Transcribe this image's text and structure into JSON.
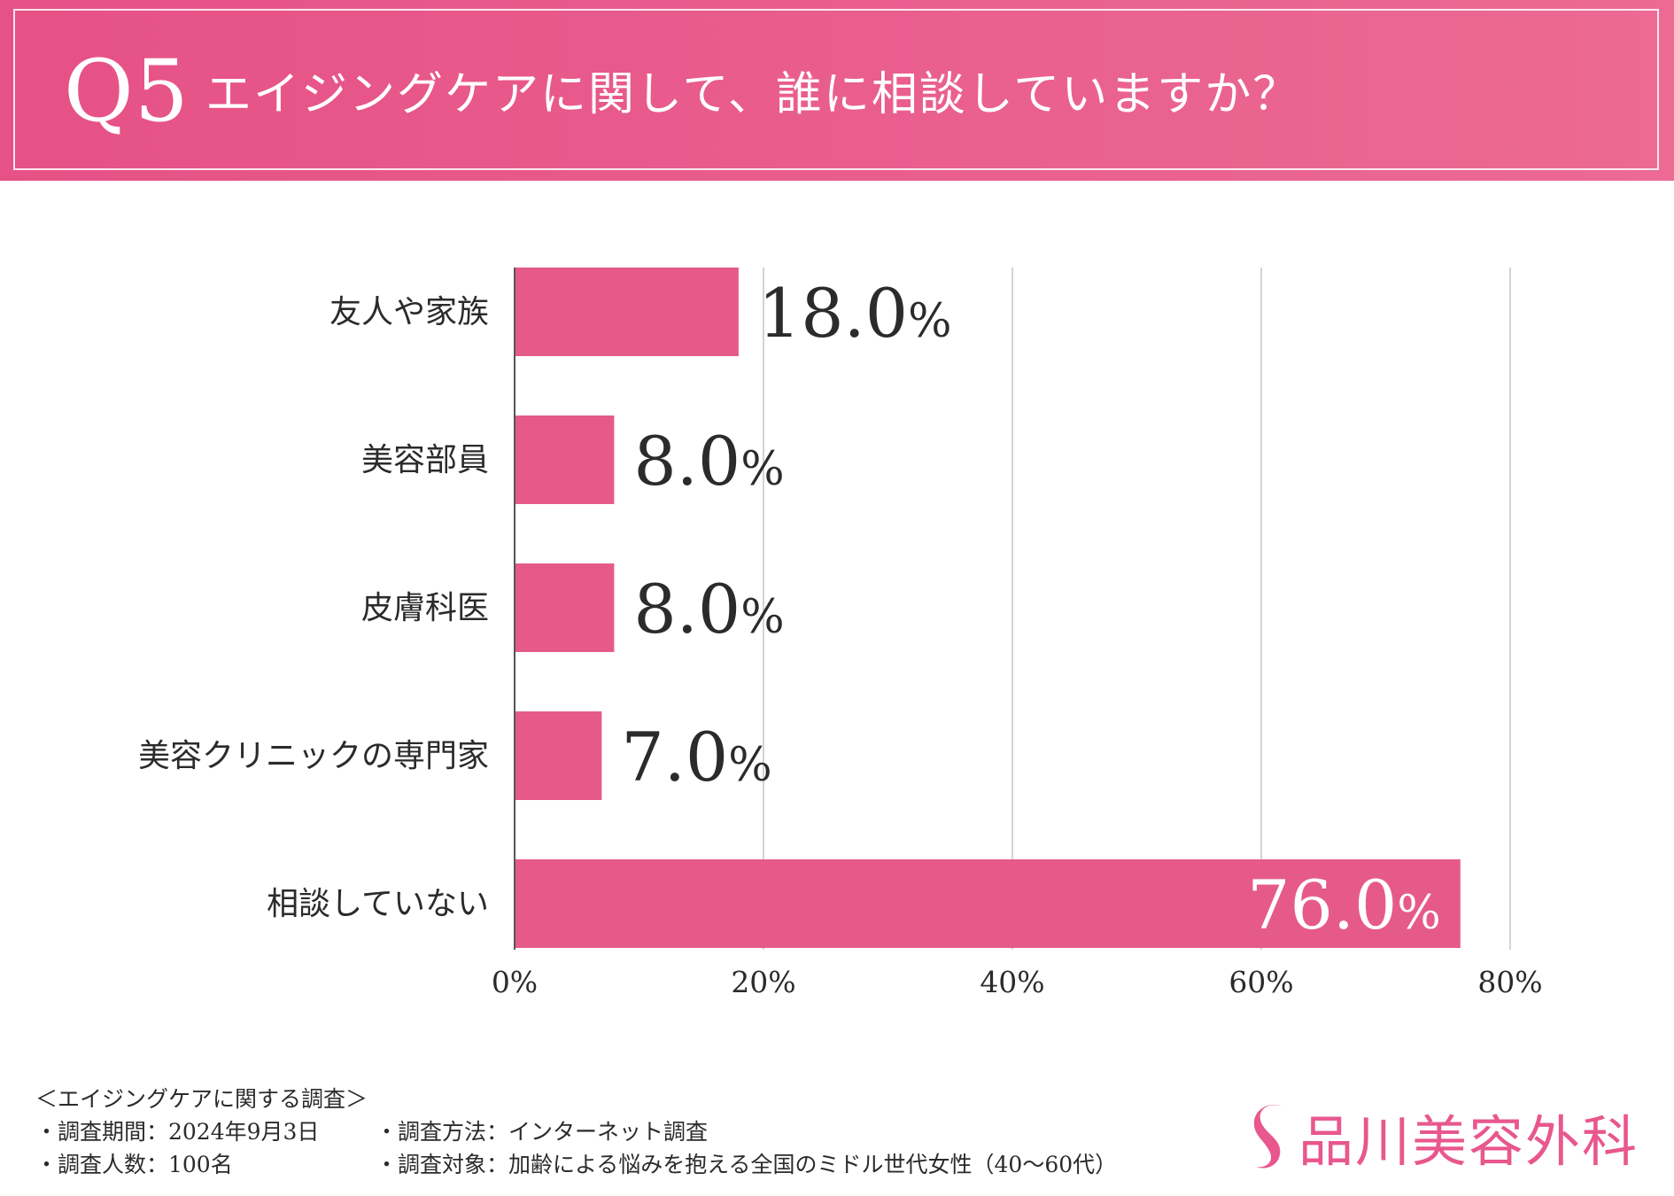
{
  "header": {
    "q_number": "Q5",
    "question": "エイジングケアに関して、誰に相談していますか？"
  },
  "chart_data": {
    "type": "bar",
    "orientation": "horizontal",
    "title": "エイジングケアに関して、誰に相談していますか？",
    "categories": [
      "友人や家族",
      "美容部員",
      "皮膚科医",
      "美容クリニックの専門家",
      "相談していない"
    ],
    "values": [
      18.0,
      8.0,
      8.0,
      7.0,
      76.0
    ],
    "value_labels": [
      "18.0",
      "8.0",
      "8.0",
      "7.0",
      "76.0"
    ],
    "value_suffix": "%",
    "xlim": [
      0,
      80
    ],
    "x_ticks": [
      0,
      20,
      40,
      60,
      80
    ],
    "x_tick_labels": [
      "0%",
      "20%",
      "40%",
      "60%",
      "80%"
    ],
    "grid": true,
    "bar_color": "#e65a8a",
    "label_color": "#2b2b2b",
    "inside_label_color": "#ffffff"
  },
  "survey": {
    "heading": "＜エイジングケアに関する調査＞",
    "period": "・調査期間：2024年9月3日",
    "method": "・調査方法：インターネット調査",
    "count": "・調査人数：100名",
    "target": "・調査対象：加齢による悩みを抱える全国のミドル世代女性（40〜60代）"
  },
  "brand": {
    "name": "品川美容外科",
    "color": "#e8578d"
  }
}
